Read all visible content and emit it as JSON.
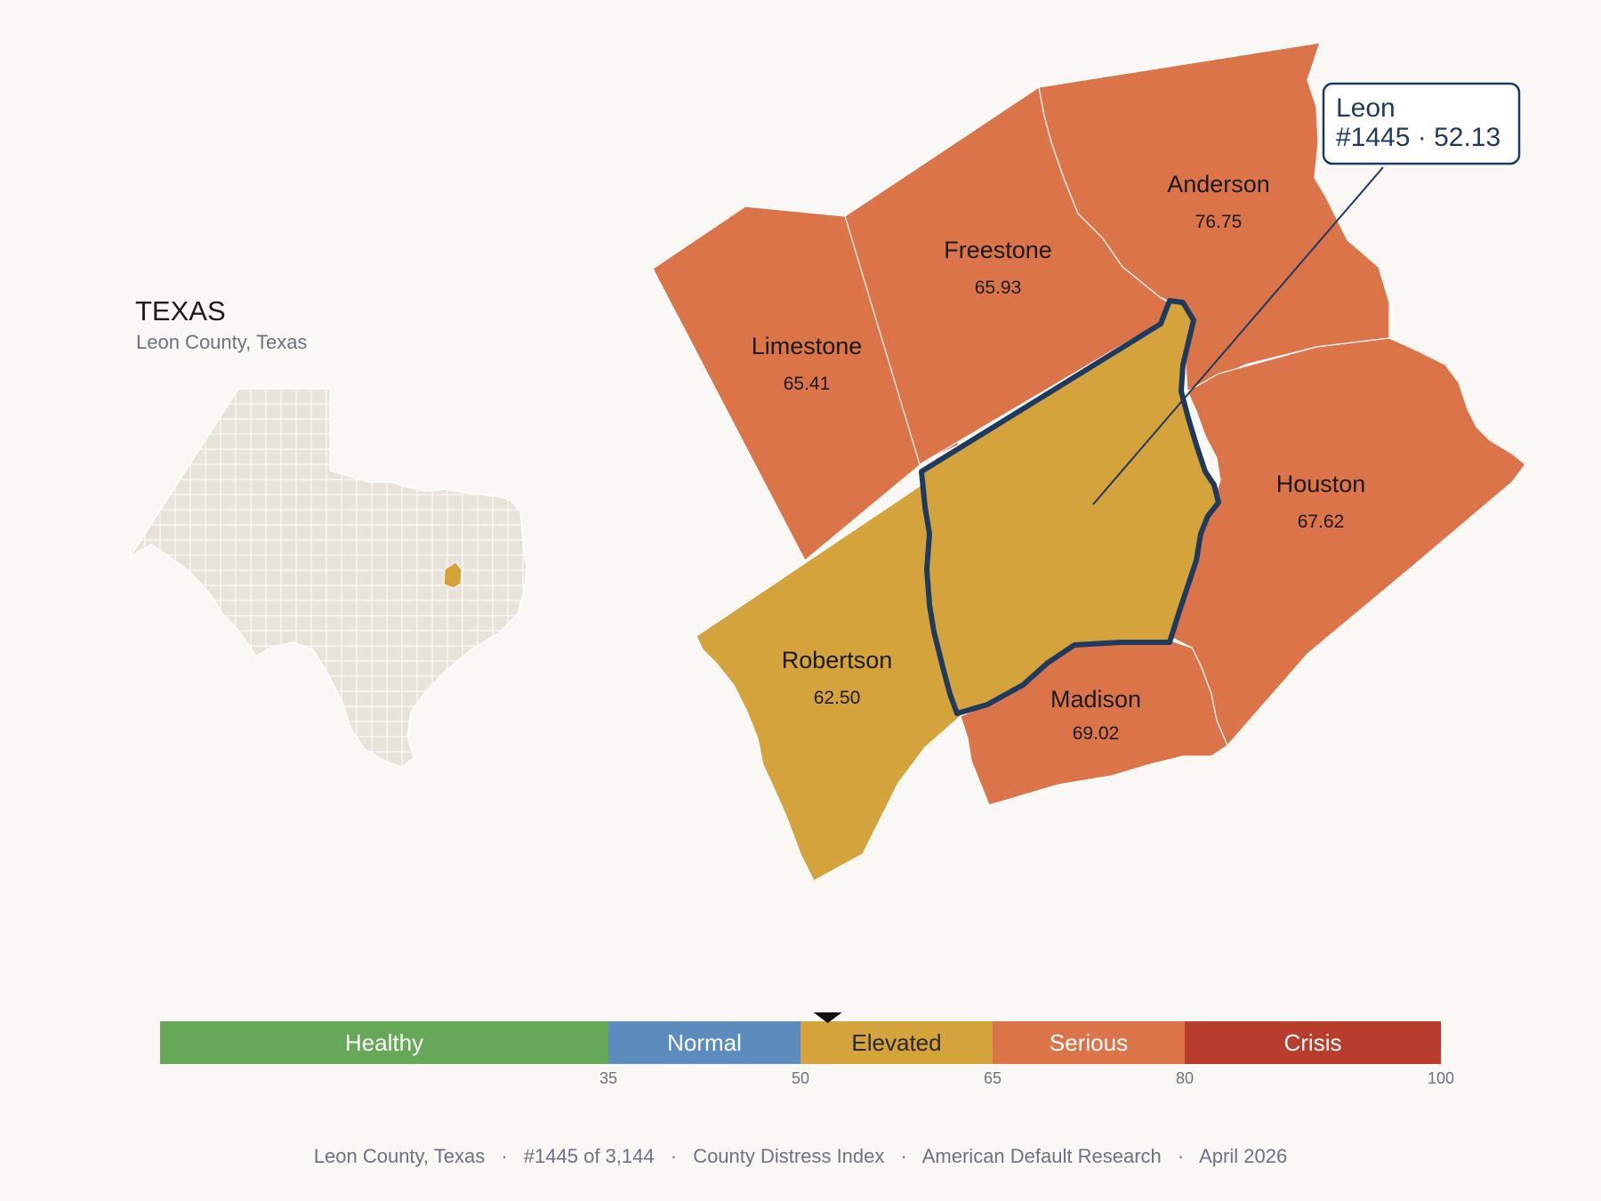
{
  "state_panel": {
    "title": "TEXAS",
    "subtitle": "Leon County, Texas",
    "inset_base_color": "#e8e3d9",
    "inset_highlight_color": "#d4a33b"
  },
  "counties": [
    {
      "key": "limestone",
      "name": "Limestone",
      "value": "65.41",
      "color": "#db7549"
    },
    {
      "key": "freestone",
      "name": "Freestone",
      "value": "65.93",
      "color": "#db7549"
    },
    {
      "key": "anderson",
      "name": "Anderson",
      "value": "76.75",
      "color": "#db7549"
    },
    {
      "key": "houston",
      "name": "Houston",
      "value": "67.62",
      "color": "#db7549"
    },
    {
      "key": "madison",
      "name": "Madison",
      "value": "69.02",
      "color": "#db7549"
    },
    {
      "key": "robertson",
      "name": "Robertson",
      "value": "62.50",
      "color": "#d4a33b"
    },
    {
      "key": "leon",
      "name": "Leon",
      "value": "52.13",
      "color": "#d4a33b",
      "outline_color": "#1f3a5f",
      "highlighted": true
    }
  ],
  "callout": {
    "line1": "Leon",
    "line2": "#1445 · 52.13"
  },
  "legend": {
    "min": 0,
    "max": 100,
    "marker_value": 52.13,
    "segments": [
      {
        "label": "Healthy",
        "from": 0,
        "to": 35,
        "color": "#67a758"
      },
      {
        "label": "Normal",
        "from": 35,
        "to": 50,
        "color": "#5b8cbd"
      },
      {
        "label": "Elevated",
        "from": 50,
        "to": 65,
        "color": "#d4a33b"
      },
      {
        "label": "Serious",
        "from": 65,
        "to": 80,
        "color": "#db7549"
      },
      {
        "label": "Crisis",
        "from": 80,
        "to": 100,
        "color": "#b83d2c"
      }
    ],
    "ticks": [
      "35",
      "50",
      "65",
      "80",
      "100"
    ]
  },
  "footer": {
    "county": "Leon County, Texas",
    "rank": "#1445 of 3,144",
    "index": "County Distress Index",
    "org": "American Default Research",
    "date": "April 2026",
    "separator": "·"
  }
}
